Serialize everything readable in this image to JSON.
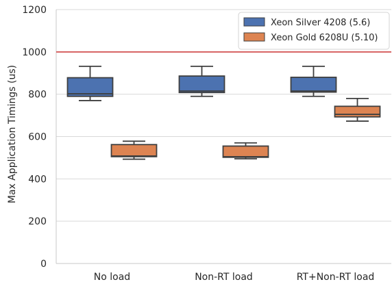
{
  "chart_data": {
    "type": "box",
    "ylabel": "Max Application Timings (us)",
    "xlabel": "",
    "ylim": [
      0,
      1200
    ],
    "yticks": [
      0,
      200,
      400,
      600,
      800,
      1000,
      1200
    ],
    "categories": [
      "No load",
      "Non-RT load",
      "RT+Non-RT load"
    ],
    "grid": "horizontal",
    "legend_position": "top-right",
    "reference_line": {
      "y": 1000,
      "color": "#d65f5f"
    },
    "series": [
      {
        "name": "Xeon Silver 4208 (5.6)",
        "color": "#4c72b0",
        "boxes": [
          {
            "min": 770,
            "q1": 790,
            "median": 802,
            "q3": 878,
            "max": 932
          },
          {
            "min": 790,
            "q1": 808,
            "median": 815,
            "q3": 886,
            "max": 932
          },
          {
            "min": 790,
            "q1": 810,
            "median": 815,
            "q3": 880,
            "max": 932
          }
        ]
      },
      {
        "name": "Xeon Gold 6208U (5.10)",
        "color": "#dd8452",
        "boxes": [
          {
            "min": 493,
            "q1": 505,
            "median": 508,
            "q3": 562,
            "max": 578
          },
          {
            "min": 495,
            "q1": 502,
            "median": 505,
            "q3": 555,
            "max": 570
          },
          {
            "min": 673,
            "q1": 693,
            "median": 705,
            "q3": 743,
            "max": 780
          }
        ]
      }
    ]
  }
}
